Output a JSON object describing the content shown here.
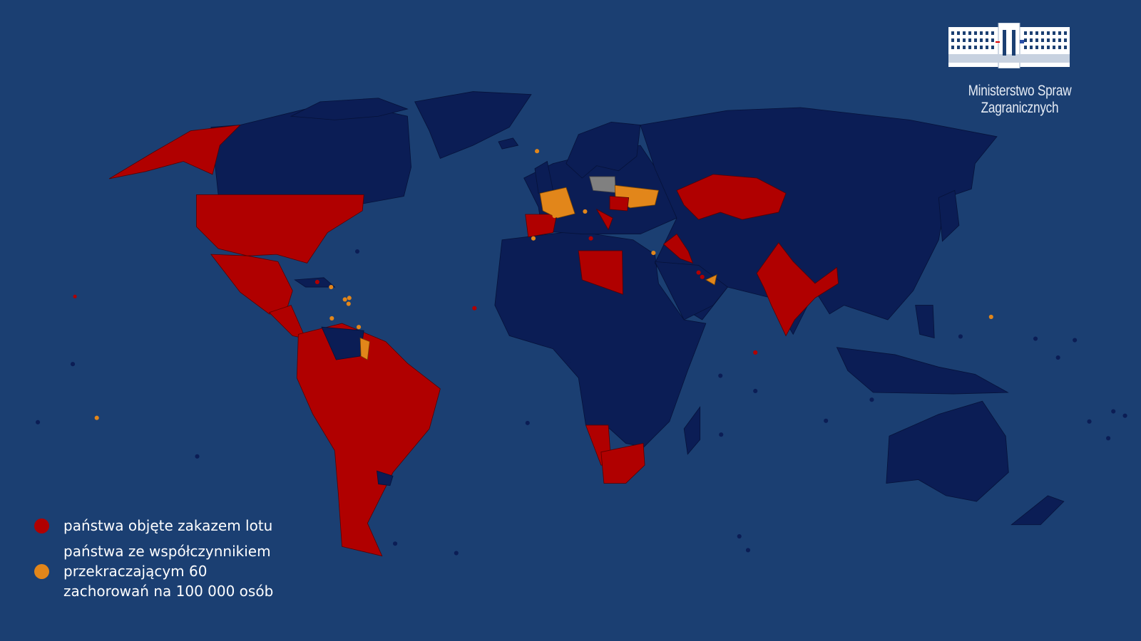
{
  "header": {
    "ministry_name": "Ministerstwo Spraw Zagranicznych"
  },
  "legend": {
    "items": [
      {
        "label": "państwa objęte zakazem lotu",
        "color": "#b00000"
      },
      {
        "label": "państwa ze współczynnikiem przekraczającym 60 zachorowań na 100 000 osób",
        "color": "#e2861a"
      }
    ]
  },
  "colors": {
    "background": "#1b3f72",
    "land": "#0b1d55",
    "flight_ban": "#b00000",
    "high_incidence": "#e2861a",
    "poland": "#808080"
  },
  "logo": {
    "icon": "ministry-building-icon"
  }
}
